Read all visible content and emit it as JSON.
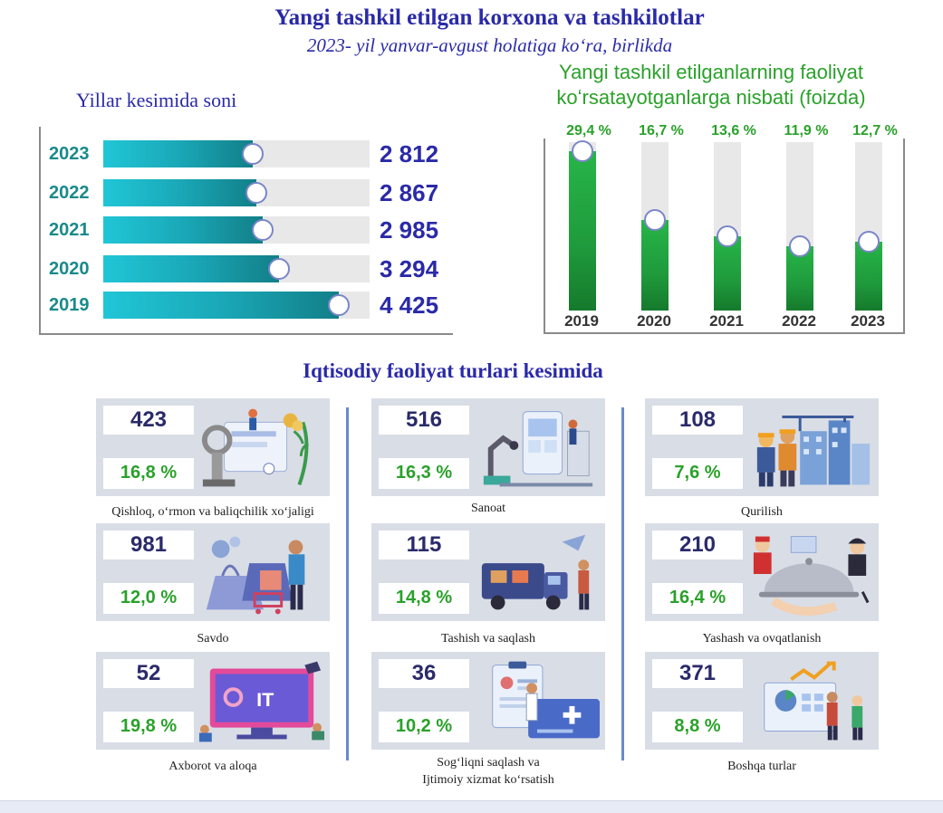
{
  "header": {
    "title": "Yangi tashkil etilgan korxona va tashkilotlar",
    "subtitle": "2023- yil yanvar-avgust holatiga koʻra, birlikda"
  },
  "chart_data": [
    {
      "type": "bar",
      "orientation": "horizontal",
      "title": "Yillar kesimida soni",
      "categories": [
        "2023",
        "2022",
        "2021",
        "2020",
        "2019"
      ],
      "values": [
        2812,
        2867,
        2985,
        3294,
        4425
      ],
      "value_labels": [
        "2 812",
        "2 867",
        "2 985",
        "3 294",
        "4 425"
      ],
      "xlim": [
        0,
        5000
      ],
      "colors": {
        "bar": "#1aa8b8",
        "track": "#e8e8e8"
      }
    },
    {
      "type": "bar",
      "orientation": "vertical",
      "title": "Yangi tashkil etilganlarning faoliyat koʻrsatayotganlarga nisbati (foizda)",
      "title_lines": [
        "Yangi tashkil etilganlarning faoliyat",
        "koʻrsatayotganlarga nisbati (foizda)"
      ],
      "categories": [
        "2019",
        "2020",
        "2021",
        "2022",
        "2023"
      ],
      "values": [
        29.4,
        16.7,
        13.6,
        11.9,
        12.7
      ],
      "value_labels": [
        "29,4 %",
        "16,7 %",
        "13,6 %",
        "11,9 %",
        "12,7 %"
      ],
      "ylim": [
        0,
        31
      ],
      "colors": {
        "bar": "#1f9a3c",
        "track": "#e8e8e8"
      }
    }
  ],
  "activities": {
    "title": "Iqtisodiy faoliyat turlari kesimida",
    "cards": [
      {
        "count": "423",
        "percent": "16,8 %",
        "caption": [
          "Qishloq, oʻrmon va baliqchilik xoʻjaligi"
        ],
        "icon": "agriculture-illustration"
      },
      {
        "count": "516",
        "percent": "16,3 %",
        "caption": [
          "Sanoat"
        ],
        "icon": "industry-illustration"
      },
      {
        "count": "108",
        "percent": "7,6 %",
        "caption": [
          "Qurilish"
        ],
        "icon": "construction-illustration"
      },
      {
        "count": "981",
        "percent": "12,0 %",
        "caption": [
          "Savdo"
        ],
        "icon": "trade-illustration"
      },
      {
        "count": "115",
        "percent": "14,8 %",
        "caption": [
          "Tashish va saqlash"
        ],
        "icon": "transport-illustration"
      },
      {
        "count": "210",
        "percent": "16,4 %",
        "caption": [
          "Yashash va ovqatlanish"
        ],
        "icon": "hospitality-illustration"
      },
      {
        "count": "52",
        "percent": "19,8 %",
        "caption": [
          "Axborot va aloqa"
        ],
        "icon": "it-illustration",
        "illus_text": "IT"
      },
      {
        "count": "36",
        "percent": "10,2 %",
        "caption": [
          "Sogʻliqni saqlash va",
          "Ijtimoiy xizmat koʻrsatish"
        ],
        "icon": "healthcare-illustration"
      },
      {
        "count": "371",
        "percent": "8,8 %",
        "caption": [
          "Boshqa turlar"
        ],
        "icon": "other-illustration"
      }
    ]
  },
  "colors": {
    "title": "#2a2aa8",
    "green": "#2aa12a",
    "teal": "#1a8a8a",
    "card_bg": "#d9dde6"
  }
}
